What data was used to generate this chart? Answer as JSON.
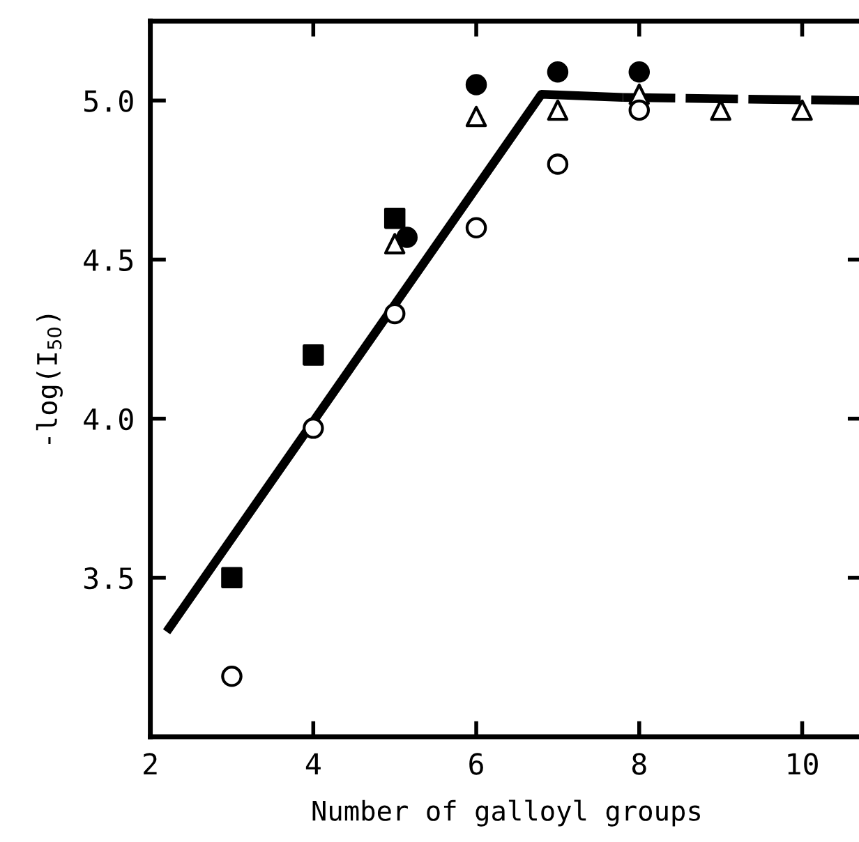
{
  "chart_data": {
    "type": "scatter",
    "xlabel": "Number of galloyl groups",
    "ylabel": "-log(I$_{50}$)",
    "xlim": [
      2,
      10.75
    ],
    "ylim": [
      3.0,
      5.25
    ],
    "xticks": [
      2,
      4,
      6,
      8,
      10
    ],
    "yticks": [
      {
        "value": 3.5,
        "label": "3.5"
      },
      {
        "value": 4.0,
        "label": "4.0"
      },
      {
        "value": 4.5,
        "label": "4.5"
      },
      {
        "value": 5.0,
        "label": "5.0"
      }
    ],
    "grid": false,
    "legend": false,
    "series": [
      {
        "marker": "circle",
        "color": "#000000",
        "x": [
          5.15,
          6,
          7,
          8
        ],
        "values": [
          4.57,
          5.05,
          5.09,
          5.09
        ]
      },
      {
        "marker": "square",
        "color": "#000000",
        "x": [
          3,
          4,
          5
        ],
        "values": [
          3.5,
          4.2,
          4.63
        ]
      },
      {
        "marker": "triangle",
        "color": "#ffffff",
        "x": [
          5,
          6,
          7,
          8,
          9,
          10
        ],
        "values": [
          4.55,
          4.95,
          4.97,
          5.02,
          4.97,
          4.97
        ]
      },
      {
        "marker": "circle",
        "color": "#ffffff",
        "x": [
          3,
          4,
          5,
          6,
          7,
          8
        ],
        "values": [
          3.19,
          3.97,
          4.33,
          4.6,
          4.8,
          4.97
        ]
      },
      {
        "type": "line",
        "line_style": "solid",
        "marker": "none",
        "color": "#000000",
        "x": [
          2.2,
          6.8,
          7.8
        ],
        "values": [
          3.33,
          5.02,
          5.01
        ]
      },
      {
        "type": "line",
        "line_style": "dashed",
        "marker": "none",
        "color": "#000000",
        "x": [
          7.8,
          10.7
        ],
        "values": [
          5.01,
          5.0
        ]
      }
    ]
  }
}
